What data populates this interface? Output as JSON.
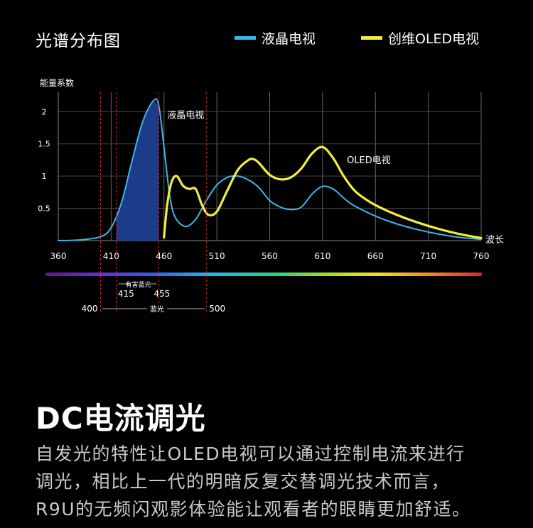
{
  "header": {
    "title": "光谱分布图",
    "legend": [
      {
        "label": "液晶电视",
        "color": "#3fb6e8"
      },
      {
        "label": "创维OLED电视",
        "color": "#f2ee3a"
      }
    ]
  },
  "chart_data": {
    "type": "line",
    "ylabel": "能量系数",
    "xlabel": "波长",
    "x_ticks": [
      360,
      410,
      460,
      510,
      560,
      610,
      660,
      710,
      760
    ],
    "y_ticks": [
      0.5,
      1,
      1.5,
      2
    ],
    "xlim": [
      360,
      760
    ],
    "ylim": [
      0,
      2.3
    ],
    "series": [
      {
        "name": "液晶电视",
        "color": "#3fb6e8",
        "x": [
          360,
          380,
          400,
          410,
          420,
          430,
          440,
          450,
          455,
          460,
          465,
          470,
          480,
          490,
          500,
          510,
          520,
          530,
          540,
          550,
          560,
          570,
          580,
          590,
          600,
          610,
          620,
          630,
          640,
          660,
          680,
          700,
          720,
          740,
          760
        ],
        "y": [
          0.0,
          0.01,
          0.06,
          0.2,
          0.6,
          1.25,
          1.85,
          2.17,
          2.1,
          1.45,
          0.75,
          0.38,
          0.22,
          0.33,
          0.62,
          0.86,
          0.98,
          1.0,
          0.94,
          0.82,
          0.62,
          0.52,
          0.48,
          0.52,
          0.72,
          0.84,
          0.8,
          0.66,
          0.54,
          0.38,
          0.26,
          0.17,
          0.1,
          0.05,
          0.02
        ]
      },
      {
        "name": "创维OLED电视",
        "color": "#f2ee3a",
        "x": [
          460,
          463,
          467,
          472,
          478,
          484,
          490,
          496,
          502,
          510,
          520,
          530,
          540,
          545,
          550,
          560,
          570,
          580,
          590,
          600,
          610,
          620,
          630,
          640,
          650,
          660,
          680,
          700,
          720,
          740,
          760
        ],
        "y": [
          0.05,
          0.55,
          0.9,
          1.0,
          0.85,
          0.8,
          0.8,
          0.55,
          0.4,
          0.45,
          0.78,
          1.1,
          1.25,
          1.26,
          1.2,
          1.02,
          0.95,
          0.98,
          1.12,
          1.35,
          1.45,
          1.28,
          1.0,
          0.78,
          0.65,
          0.55,
          0.4,
          0.28,
          0.18,
          0.1,
          0.04
        ]
      }
    ],
    "shaded_region": {
      "x": [
        415,
        455
      ],
      "color": "#1e3f91"
    },
    "annotations": [
      {
        "text": "液晶电视",
        "x": 463,
        "y": 1.9
      },
      {
        "text": "OLED电视",
        "x": 633,
        "y": 1.2
      }
    ],
    "marker_lines": [
      {
        "x": 400,
        "color": "#d91f1f"
      },
      {
        "x": 415,
        "color": "#d91f1f"
      },
      {
        "x": 455,
        "color": "#d91f1f"
      },
      {
        "x": 500,
        "color": "#d91f1f"
      }
    ],
    "bands": [
      {
        "label": "有害蓝光",
        "from": 415,
        "to": 455,
        "from_label": "415",
        "to_label": "455"
      },
      {
        "label": "蓝光",
        "from": 400,
        "to": 500,
        "from_label": "400",
        "to_label": "500"
      }
    ],
    "spectrum_bar": true,
    "grid": true
  },
  "section": {
    "heading": "DC电流调光",
    "lines": [
      "自发光的特性让OLED电视可以通过控制电流来进行",
      "调光，相比上一代的明暗反复交替调光技术而言，",
      "R9U的无频闪观影体验能让观看者的眼睛更加舒适。"
    ]
  }
}
